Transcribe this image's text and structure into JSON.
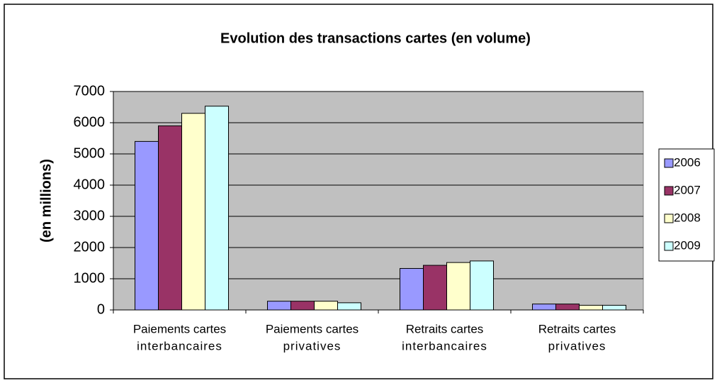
{
  "chart_data": {
    "type": "bar",
    "title": "Evolution des transactions  cartes (en volume)",
    "y_label": "(en millions)",
    "categories": [
      [
        "Paiements cartes",
        "interbancaires"
      ],
      [
        "Paiements cartes",
        "privatives"
      ],
      [
        "Retraits cartes",
        "interbancaires"
      ],
      [
        "Retraits cartes",
        "privatives"
      ]
    ],
    "series": [
      {
        "name": "2006",
        "color": "#9999ff",
        "values": [
          5400,
          280,
          1330,
          190
        ]
      },
      {
        "name": "2007",
        "color": "#993366",
        "values": [
          5900,
          280,
          1430,
          190
        ]
      },
      {
        "name": "2008",
        "color": "#ffffcc",
        "values": [
          6300,
          280,
          1520,
          150
        ]
      },
      {
        "name": "2009",
        "color": "#ccffff",
        "values": [
          6530,
          230,
          1570,
          150
        ]
      }
    ],
    "ylim": [
      0,
      7000
    ],
    "yticks": [
      0,
      1000,
      2000,
      3000,
      4000,
      5000,
      6000,
      7000
    ],
    "grid": true,
    "legend": "right"
  }
}
